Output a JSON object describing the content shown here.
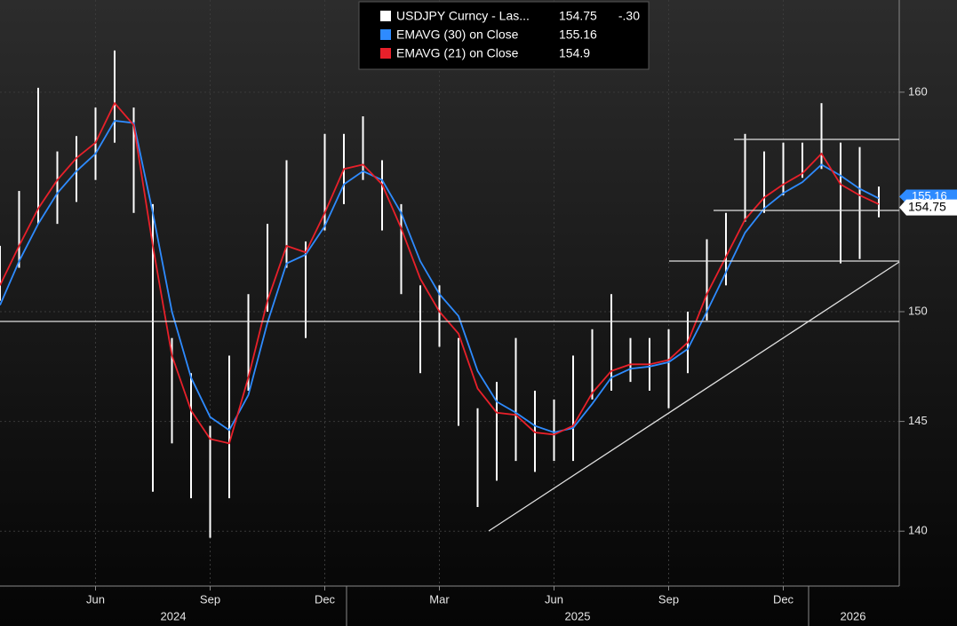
{
  "chart_data": {
    "type": "hilo",
    "categories": [
      null,
      null,
      null,
      null,
      null,
      "Jun",
      null,
      null,
      null,
      null,
      null,
      "Sep",
      null,
      null,
      null,
      null,
      null,
      "Dec",
      null,
      null,
      null,
      null,
      null,
      "Mar",
      null,
      null,
      null,
      null,
      null,
      "Jun",
      null,
      null,
      null,
      null,
      null,
      "Sep",
      null,
      null,
      null,
      null,
      null,
      "Dec",
      null,
      null,
      null,
      null,
      null
    ],
    "years": [
      "2024",
      "2025",
      "2026"
    ],
    "series": [
      {
        "name": "USDJPY Curncy - Las...",
        "color": "#ffffff",
        "last": 154.75,
        "change": -0.3,
        "change_label": "-.30",
        "high": [
          153,
          155.5,
          160.2,
          157.3,
          158,
          159.3,
          161.9,
          159.3,
          154.9,
          148.8,
          147.2,
          144.8,
          148,
          150.8,
          154,
          156.9,
          153.2,
          158.1,
          158.1,
          158.9,
          156.9,
          154.9,
          151.2,
          151.2,
          148.8,
          145.6,
          146.8,
          148.8,
          146.4,
          146,
          148,
          149.2,
          150.8,
          148.8,
          148.8,
          149.2,
          150,
          153.3,
          154.5,
          158.1,
          157.3,
          157.7,
          157.7,
          159.5,
          157.7,
          157.5,
          155.7
        ],
        "low": [
          150.5,
          152,
          154,
          154,
          155,
          156,
          157.7,
          154.5,
          141.8,
          144,
          141.5,
          139.7,
          141.5,
          146.4,
          150,
          152,
          148.8,
          153.7,
          154.9,
          156,
          153.7,
          150.8,
          147.2,
          148.4,
          144.8,
          141.1,
          142.3,
          143.2,
          142.7,
          143.2,
          143.2,
          146,
          146.4,
          146.8,
          146.4,
          145.6,
          147.2,
          149.6,
          151.2,
          154.1,
          154.5,
          155.3,
          156.1,
          156.5,
          152.2,
          152.4,
          154.3
        ]
      },
      {
        "name": "EMAVG (30)  on Close",
        "color": "#2e8bff",
        "last": 155.16,
        "values": [
          150.3,
          152.3,
          154,
          155.4,
          156.4,
          157.2,
          158.7,
          158.6,
          154.5,
          150,
          147,
          145.2,
          144.6,
          146.2,
          149.5,
          152.2,
          152.6,
          153.9,
          155.8,
          156.4,
          156,
          154.5,
          152.3,
          150.8,
          149.8,
          147.3,
          145.9,
          145.4,
          144.8,
          144.5,
          144.7,
          145.8,
          147,
          147.4,
          147.5,
          147.7,
          148.3,
          150,
          151.8,
          153.6,
          154.7,
          155.4,
          155.9,
          156.7,
          156.2,
          155.6,
          155.16
        ]
      },
      {
        "name": "EMAVG (21)  on Close",
        "color": "#e8202a",
        "last": 154.9,
        "values": [
          151.2,
          153,
          154.7,
          156,
          157,
          157.7,
          159.5,
          158.5,
          153,
          148,
          145.5,
          144.2,
          144,
          147,
          150.5,
          153,
          152.7,
          154.5,
          156.5,
          156.7,
          155.8,
          153.8,
          151.5,
          150,
          149,
          146.5,
          145.4,
          145.3,
          144.5,
          144.4,
          144.8,
          146.3,
          147.3,
          147.6,
          147.6,
          147.8,
          148.6,
          150.8,
          152.5,
          154.2,
          155.2,
          155.8,
          156.3,
          157.2,
          155.8,
          155.3,
          154.9
        ]
      }
    ],
    "ylim": [
      137.5,
      164.2
    ],
    "yticks": [
      140,
      145,
      150,
      160
    ],
    "grid": true
  }
}
